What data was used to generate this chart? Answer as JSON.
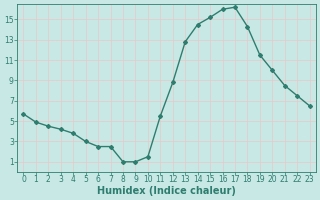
{
  "x": [
    0,
    1,
    2,
    3,
    4,
    5,
    6,
    7,
    8,
    9,
    10,
    11,
    12,
    13,
    14,
    15,
    16,
    17,
    18,
    19,
    20,
    21,
    22,
    23
  ],
  "y": [
    5.7,
    4.9,
    4.5,
    4.2,
    3.8,
    3.0,
    2.5,
    2.5,
    1.0,
    1.0,
    1.5,
    5.5,
    8.8,
    12.8,
    14.5,
    15.2,
    16.0,
    16.2,
    14.3,
    11.5,
    10.0,
    8.5,
    7.5,
    6.5
  ],
  "line_color": "#2e7d6e",
  "marker": "D",
  "marker_size": 2,
  "bg_color": "#c8e8e5",
  "grid_color": "#e8c8c8",
  "axes_color": "#2e7d6e",
  "xlabel": "Humidex (Indice chaleur)",
  "xlabel_fontsize": 7,
  "ylim": [
    0,
    16.5
  ],
  "xlim": [
    -0.5,
    23.5
  ],
  "yticks": [
    1,
    3,
    5,
    7,
    9,
    11,
    13,
    15
  ],
  "xticks": [
    0,
    1,
    2,
    3,
    4,
    5,
    6,
    7,
    8,
    9,
    10,
    11,
    12,
    13,
    14,
    15,
    16,
    17,
    18,
    19,
    20,
    21,
    22,
    23
  ],
  "tick_fontsize": 5.5,
  "linewidth": 1.0
}
